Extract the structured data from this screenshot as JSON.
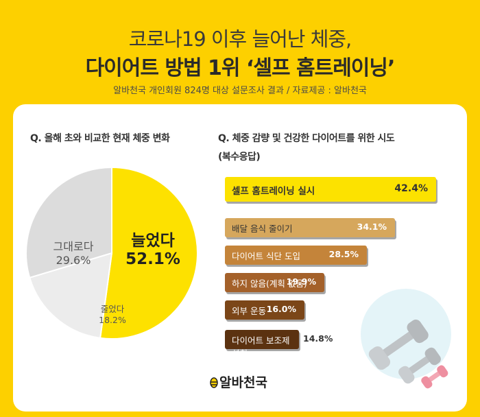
{
  "header": {
    "title_line1": "코로나19 이후 늘어난 체중,",
    "title_line2": "다이어트 방법 1위 ‘셀프 홈트레이닝’",
    "subtitle": "알바천국 개인회원 824명 대상 설문조사 결과 / 자료제공 : 알바천국"
  },
  "questions": {
    "q1": "Q. 올해 초와 비교한 현재 체중 변화",
    "q2_line1": "Q. 체중 감량 및 건강한 다이어트를 위한 시도",
    "q2_line2": "(복수응답)"
  },
  "logo": {
    "text": "알바천국",
    "icon": "bee-icon"
  },
  "colors": {
    "background": "#fdd000",
    "pie_increased": "#fde100",
    "pie_same": "#dcdcdc",
    "pie_decreased": "#ececec"
  },
  "chart_data": [
    {
      "type": "pie",
      "title": "Q. 올해 초와 비교한 현재 체중 변화",
      "slices": [
        {
          "label": "늘었다",
          "value": 52.1,
          "value_label": "52.1%",
          "color": "#fde100"
        },
        {
          "label": "줄었다",
          "value": 18.2,
          "value_label": "18.2%",
          "color": "#ececec"
        },
        {
          "label": "그대로다",
          "value": 29.6,
          "value_label": "29.6%",
          "color": "#dcdcdc"
        }
      ]
    },
    {
      "type": "bar",
      "orientation": "horizontal",
      "title": "Q. 체중 감량 및 건강한 다이어트를 위한 시도",
      "subtitle": "(복수응답)",
      "categories": [
        "셀프 홈트레이닝 실시",
        "배달 음식 줄이기",
        "다이어트 식단 도입",
        "하지 않음(계획 없음)",
        "외부 운동",
        "다이어트 보조제 섭취"
      ],
      "values": [
        42.4,
        34.1,
        28.5,
        19.9,
        16.0,
        14.8
      ],
      "value_labels": [
        "42.4%",
        "34.1%",
        "28.5%",
        "19.9%",
        "16.0%",
        "14.8%"
      ],
      "colors": [
        "#fce200",
        "#d6a75c",
        "#c4843a",
        "#a4612a",
        "#7b4618",
        "#5b3210"
      ]
    }
  ]
}
